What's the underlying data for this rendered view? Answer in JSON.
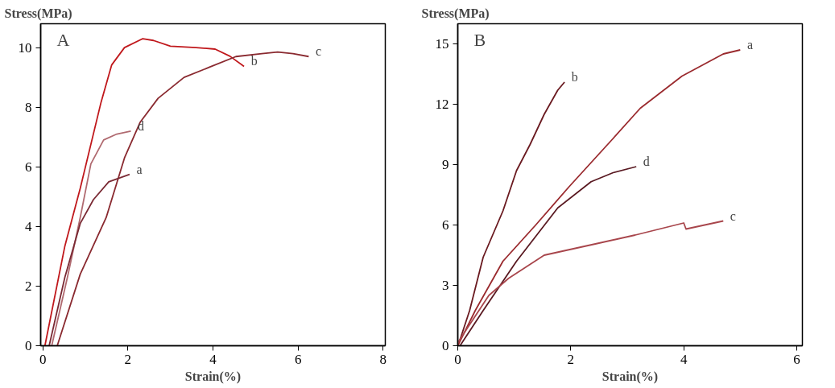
{
  "chart_data": [
    {
      "type": "line",
      "xlabel": "Strain(%)",
      "ylabel": "Stress(MPa)",
      "annotations": [
        "A"
      ],
      "xlim": [
        -0.05,
        8.05
      ],
      "ylim": [
        0,
        10.8
      ],
      "xticks": [
        0,
        2,
        4,
        6,
        8
      ],
      "yticks": [
        0,
        2,
        4,
        6,
        8,
        10
      ],
      "grid": false,
      "legend": false,
      "series": [
        {
          "name": "b",
          "color": "#c0181c",
          "x": [
            0.05,
            0.52,
            0.88,
            1.37,
            1.62,
            1.92,
            2.35,
            2.6,
            3.0,
            3.6,
            4.05,
            4.4,
            4.73
          ],
          "values": [
            0,
            3.35,
            5.28,
            8.17,
            9.42,
            10.0,
            10.3,
            10.24,
            10.05,
            10.0,
            9.95,
            9.71,
            9.37
          ]
        },
        {
          "name": "c",
          "color": "#8a2a30",
          "x": [
            0.34,
            0.88,
            1.49,
            1.92,
            2.29,
            2.71,
            3.32,
            3.93,
            4.54,
            5.15,
            5.52,
            5.88,
            6.25
          ],
          "values": [
            0,
            2.4,
            4.3,
            6.3,
            7.5,
            8.3,
            9.0,
            9.35,
            9.7,
            9.8,
            9.85,
            9.8,
            9.7
          ]
        },
        {
          "name": "d",
          "color": "#b06a70",
          "x": [
            0.21,
            0.58,
            0.88,
            1.13,
            1.43,
            1.74,
            2.07
          ],
          "values": [
            0,
            2.3,
            4.3,
            6.1,
            6.9,
            7.1,
            7.2
          ]
        },
        {
          "name": "a",
          "color": "#7a2a34",
          "x": [
            0.15,
            0.52,
            0.88,
            1.19,
            1.55,
            2.04
          ],
          "values": [
            0,
            2.3,
            4.1,
            4.9,
            5.5,
            5.75
          ]
        }
      ]
    },
    {
      "type": "line",
      "xlabel": "Strain(%)",
      "ylabel": "Stress(MPa)",
      "annotations": [
        "B"
      ],
      "xlim": [
        0,
        6.1
      ],
      "ylim": [
        0,
        16
      ],
      "xticks": [
        0,
        2,
        4,
        6
      ],
      "yticks": [
        0,
        3,
        6,
        9,
        12,
        15
      ],
      "grid": false,
      "legend": false,
      "series": [
        {
          "name": "b",
          "color": "#6a1a20",
          "x": [
            0.04,
            0.21,
            0.45,
            0.8,
            1.04,
            1.28,
            1.53,
            1.77,
            1.89
          ],
          "values": [
            0.3,
            1.75,
            4.4,
            6.7,
            8.7,
            10.0,
            11.5,
            12.7,
            13.1
          ]
        },
        {
          "name": "a",
          "color": "#9a2a2e",
          "x": [
            0,
            0.31,
            0.8,
            1.38,
            1.97,
            2.75,
            3.23,
            3.97,
            4.7,
            5.0
          ],
          "values": [
            0,
            1.75,
            4.2,
            6.0,
            7.9,
            10.3,
            11.8,
            13.4,
            14.5,
            14.7
          ]
        },
        {
          "name": "d",
          "color": "#5a1a22",
          "x": [
            0.04,
            0.45,
            1.04,
            1.77,
            2.36,
            2.75,
            3.16
          ],
          "values": [
            0,
            1.75,
            4.2,
            6.85,
            8.15,
            8.6,
            8.9
          ]
        },
        {
          "name": "c",
          "color": "#a8464c",
          "x": [
            0,
            0.55,
            0.9,
            1.53,
            2.5,
            3.14,
            4.0,
            4.04,
            4.7
          ],
          "values": [
            0.15,
            2.5,
            3.35,
            4.5,
            5.1,
            5.5,
            6.1,
            5.8,
            6.2
          ]
        }
      ]
    }
  ]
}
